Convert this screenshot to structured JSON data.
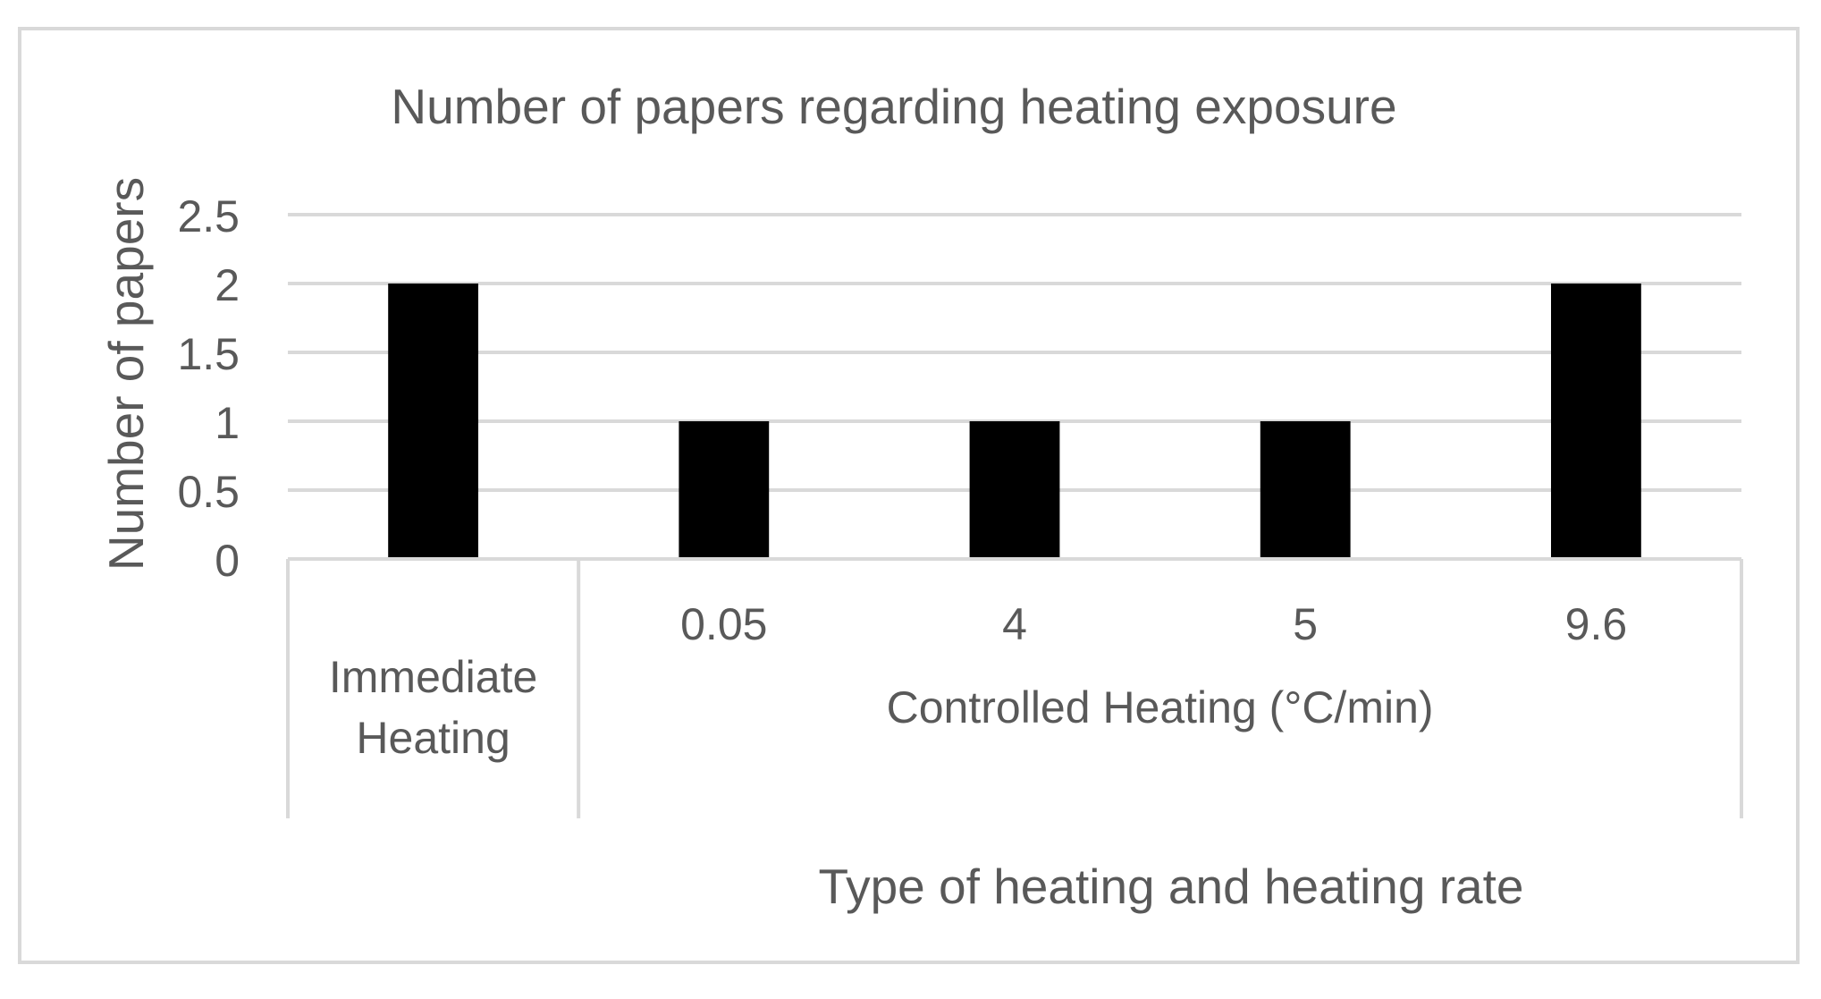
{
  "chart_data": {
    "type": "bar",
    "title": "Number of papers regarding heating exposure",
    "xlabel": "Type of heating and heating rate",
    "ylabel": "Number of papers",
    "ylim": [
      0,
      2.5
    ],
    "yticks": [
      "0",
      "0.5",
      "1",
      "1.5",
      "2",
      "2.5"
    ],
    "grid": true,
    "bar_color": "#000000",
    "gridline_color": "#d9d9d9",
    "text_color": "#595959",
    "groups": [
      {
        "label_lines": [
          "Immediate",
          "Heating"
        ],
        "categories": [
          ""
        ],
        "values": [
          2
        ]
      },
      {
        "label_lines": [
          "Controlled Heating (°C/min)"
        ],
        "categories": [
          "0.05",
          "4",
          "5",
          "9.6"
        ],
        "values": [
          1,
          1,
          1,
          2
        ]
      }
    ]
  }
}
